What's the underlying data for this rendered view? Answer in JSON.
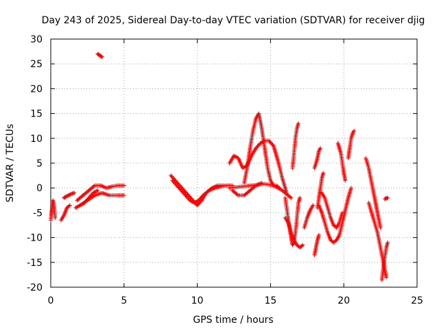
{
  "chart_data": {
    "type": "scatter",
    "title": "Day 243 of 2025, Sidereal Day-to-day VTEC variation (SDTVAR) for receiver djig",
    "xlabel": "GPS time / hours",
    "ylabel": "SDTVAR / TECUs",
    "xlim": [
      0,
      25
    ],
    "ylim": [
      -20,
      30
    ],
    "xticks": [
      0,
      5,
      10,
      15,
      20,
      25
    ],
    "xtick_labels": [
      "0",
      "5",
      "10",
      "15",
      "20",
      "25"
    ],
    "yticks": [
      -20,
      -15,
      -10,
      -5,
      0,
      5,
      10,
      15,
      20,
      25,
      30
    ],
    "ytick_labels": [
      "-20",
      "-15",
      "-10",
      "-5",
      "0",
      "5",
      "10",
      "15",
      "20",
      "25",
      "30"
    ],
    "grid": true,
    "marker": "plus",
    "color": "#ff0000",
    "series": [
      {
        "name": "s1",
        "x": [
          0.0,
          0.05,
          0.1,
          0.15,
          0.2,
          0.25,
          0.3
        ],
        "y": [
          -6.5,
          -5.0,
          -3.5,
          -2.5,
          -3.0,
          -4.5,
          -6.0
        ]
      },
      {
        "name": "s2",
        "x": [
          0.7,
          0.9,
          1.1,
          1.3
        ],
        "y": [
          -6.5,
          -5.5,
          -4.0,
          -3.5
        ]
      },
      {
        "name": "s3",
        "x": [
          0.9,
          1.0,
          1.2,
          1.4,
          1.6
        ],
        "y": [
          -2.0,
          -1.8,
          -1.5,
          -1.2,
          -1.0
        ]
      },
      {
        "name": "s4",
        "x": [
          1.7,
          2.0,
          2.3,
          2.6,
          2.9,
          3.2
        ],
        "y": [
          -4.0,
          -3.5,
          -3.0,
          -2.0,
          -1.0,
          -0.5
        ]
      },
      {
        "name": "s5",
        "x": [
          1.8,
          2.2,
          2.6,
          3.0,
          3.4,
          3.8,
          4.2,
          4.6,
          5.0
        ],
        "y": [
          -2.5,
          -1.5,
          -0.5,
          0.5,
          0.5,
          0.0,
          0.3,
          0.5,
          0.5
        ]
      },
      {
        "name": "s6",
        "x": [
          2.0,
          2.5,
          3.0,
          3.5,
          4.0,
          4.5,
          5.0
        ],
        "y": [
          -3.5,
          -2.5,
          -1.5,
          -1.0,
          -1.5,
          -1.5,
          -1.5
        ]
      },
      {
        "name": "s7",
        "x": [
          3.2,
          3.3,
          3.4,
          3.5
        ],
        "y": [
          27.0,
          26.8,
          26.6,
          26.4
        ]
      },
      {
        "name": "s8",
        "x": [
          8.2,
          8.5,
          8.8,
          9.1,
          9.4,
          9.7,
          10.0,
          10.3,
          10.6,
          11.0,
          11.4,
          11.8
        ],
        "y": [
          2.5,
          1.5,
          0.5,
          -0.5,
          -1.5,
          -2.5,
          -3.5,
          -2.5,
          -1.0,
          0.0,
          0.5,
          0.5
        ]
      },
      {
        "name": "s9",
        "x": [
          8.3,
          8.6,
          8.9,
          9.2,
          9.5,
          9.8,
          10.1,
          10.4,
          10.8,
          11.2,
          11.6,
          12.0,
          12.4
        ],
        "y": [
          1.5,
          0.5,
          -0.5,
          -1.5,
          -2.5,
          -3.0,
          -2.5,
          -1.5,
          -0.5,
          0.0,
          0.3,
          0.5,
          0.5
        ]
      },
      {
        "name": "s10",
        "x": [
          12.4,
          12.8,
          13.2,
          13.6,
          14.0,
          14.4
        ],
        "y": [
          -0.5,
          -1.5,
          -1.5,
          -0.5,
          0.5,
          1.0
        ]
      },
      {
        "name": "s11",
        "x": [
          12.2,
          12.5,
          12.8,
          13.1,
          13.4,
          13.7,
          14.0,
          14.3,
          14.6,
          14.9,
          15.2,
          15.5,
          15.8,
          16.1
        ],
        "y": [
          5.0,
          6.5,
          6.0,
          4.0,
          4.5,
          6.5,
          8.0,
          9.0,
          9.5,
          9.5,
          8.5,
          5.5,
          2.0,
          -1.0
        ]
      },
      {
        "name": "s12",
        "x": [
          13.2,
          13.4,
          13.6,
          13.8,
          14.0,
          14.2,
          14.4,
          14.6,
          14.8,
          15.0,
          15.2,
          15.4,
          15.6
        ],
        "y": [
          1.0,
          4.0,
          8.0,
          11.5,
          14.0,
          15.0,
          12.0,
          8.0,
          4.0,
          1.5,
          0.5,
          0.5,
          0.0
        ]
      },
      {
        "name": "s13",
        "x": [
          12.2,
          12.8,
          13.4,
          14.0,
          14.6,
          15.2,
          15.8,
          16.4
        ],
        "y": [
          0.0,
          0.2,
          0.4,
          0.6,
          0.8,
          0.5,
          -0.5,
          -2.0
        ]
      },
      {
        "name": "s14",
        "x": [
          16.0,
          16.1,
          16.2,
          16.3,
          16.4,
          16.5,
          16.6,
          16.7,
          16.8,
          16.9,
          17.0
        ],
        "y": [
          -2.0,
          -4.0,
          -6.0,
          -8.0,
          -10.0,
          -11.5,
          -11.0,
          -9.0,
          -6.0,
          -3.0,
          -2.0
        ]
      },
      {
        "name": "s15",
        "x": [
          16.5,
          16.6,
          16.7,
          16.8,
          16.9
        ],
        "y": [
          4.0,
          7.0,
          10.0,
          12.0,
          13.0
        ]
      },
      {
        "name": "s16",
        "x": [
          16.0,
          16.2,
          16.4,
          16.6,
          16.8,
          17.0,
          17.2
        ],
        "y": [
          -6.0,
          -7.0,
          -9.0,
          -10.5,
          -11.5,
          -12.0,
          -11.5
        ]
      },
      {
        "name": "s17",
        "x": [
          17.3,
          17.5,
          17.7,
          17.9
        ],
        "y": [
          -8.0,
          -6.0,
          -4.5,
          -3.5
        ]
      },
      {
        "name": "s18",
        "x": [
          18.0,
          18.1,
          18.2,
          18.3
        ],
        "y": [
          -13.5,
          -12.0,
          -10.5,
          -9.5
        ]
      },
      {
        "name": "s19",
        "x": [
          18.2,
          18.3,
          18.4,
          18.5,
          18.6
        ],
        "y": [
          -4.0,
          -2.0,
          0.0,
          2.0,
          3.0
        ]
      },
      {
        "name": "s20",
        "x": [
          18.3,
          18.5,
          18.7,
          18.9,
          19.1,
          19.3,
          19.5,
          19.7
        ],
        "y": [
          -3.5,
          -5.0,
          -7.0,
          -9.0,
          -10.5,
          -11.0,
          -10.5,
          -9.5
        ]
      },
      {
        "name": "s21",
        "x": [
          18.5,
          18.7,
          18.9,
          19.1,
          19.3,
          19.5,
          19.7,
          19.9
        ],
        "y": [
          -1.0,
          -2.0,
          -4.0,
          -6.0,
          -7.5,
          -8.0,
          -7.0,
          -5.0
        ]
      },
      {
        "name": "s22",
        "x": [
          19.7,
          19.9,
          20.1,
          20.3,
          20.5
        ],
        "y": [
          -9.5,
          -7.0,
          -4.5,
          -2.0,
          0.0
        ]
      },
      {
        "name": "s23",
        "x": [
          19.6,
          19.7,
          19.8,
          19.9,
          20.0,
          20.1
        ],
        "y": [
          9.0,
          8.0,
          7.0,
          5.0,
          3.0,
          1.5
        ]
      },
      {
        "name": "s24",
        "x": [
          20.3,
          20.4,
          20.5,
          20.6,
          20.7
        ],
        "y": [
          6.0,
          8.0,
          10.0,
          11.0,
          11.5
        ]
      },
      {
        "name": "s25",
        "x": [
          18.0,
          18.1,
          18.2,
          18.3,
          18.4
        ],
        "y": [
          4.0,
          5.0,
          6.0,
          7.5,
          8.0
        ]
      },
      {
        "name": "s26",
        "x": [
          21.5,
          21.7,
          21.9,
          22.1,
          22.3,
          22.5
        ],
        "y": [
          6.0,
          4.0,
          1.0,
          -2.0,
          -5.0,
          -8.0
        ]
      },
      {
        "name": "s27",
        "x": [
          21.7,
          21.9,
          22.1,
          22.3,
          22.5,
          22.7,
          22.9
        ],
        "y": [
          -3.0,
          -5.0,
          -7.0,
          -9.0,
          -12.0,
          -15.0,
          -18.0
        ]
      },
      {
        "name": "s28",
        "x": [
          22.6,
          22.7,
          22.8,
          22.9,
          23.0
        ],
        "y": [
          -18.5,
          -16.0,
          -14.0,
          -12.0,
          -11.0
        ]
      },
      {
        "name": "s29",
        "x": [
          22.8,
          22.9,
          23.0
        ],
        "y": [
          -2.2,
          -2.1,
          -2.0
        ]
      }
    ]
  }
}
